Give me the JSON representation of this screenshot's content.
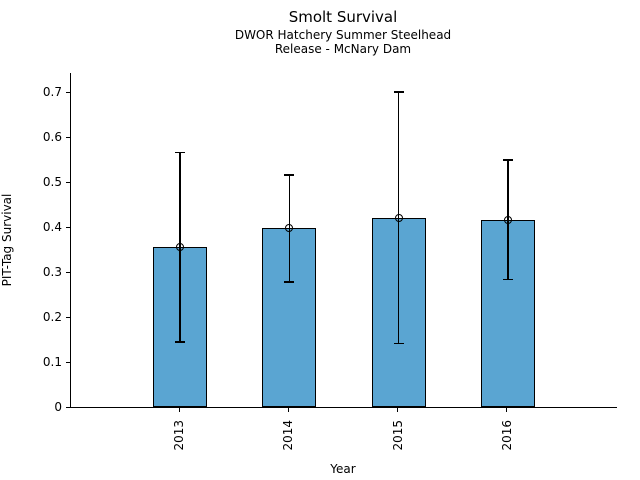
{
  "chart_data": {
    "type": "bar",
    "title": "Smolt Survival",
    "subtitle_line1": "DWOR Hatchery Summer Steelhead",
    "subtitle_line2": "Release - McNary Dam",
    "xlabel": "Year",
    "ylabel": "PIT-Tag Survival",
    "categories": [
      "2013",
      "2014",
      "2015",
      "2016"
    ],
    "series": [
      {
        "name": "PIT-Tag Survival",
        "values": [
          0.356,
          0.398,
          0.42,
          0.416
        ],
        "error_low": [
          0.145,
          0.278,
          0.141,
          0.283
        ],
        "error_high": [
          0.565,
          0.516,
          0.7,
          0.549
        ]
      }
    ],
    "ytick_labels": [
      "0",
      "0.1",
      "0.2",
      "0.3",
      "0.4",
      "0.5",
      "0.6",
      "0.7"
    ],
    "ytick_values": [
      0,
      0.1,
      0.2,
      0.3,
      0.4,
      0.5,
      0.6,
      0.7
    ],
    "ylim": [
      0,
      0.742
    ],
    "xtick_rotation": 90,
    "grid": false,
    "legend": "none",
    "bar_color": "#5aa5d2",
    "bar_edge_color": "#000000",
    "error_color": "#000000",
    "marker": "open-circle"
  }
}
